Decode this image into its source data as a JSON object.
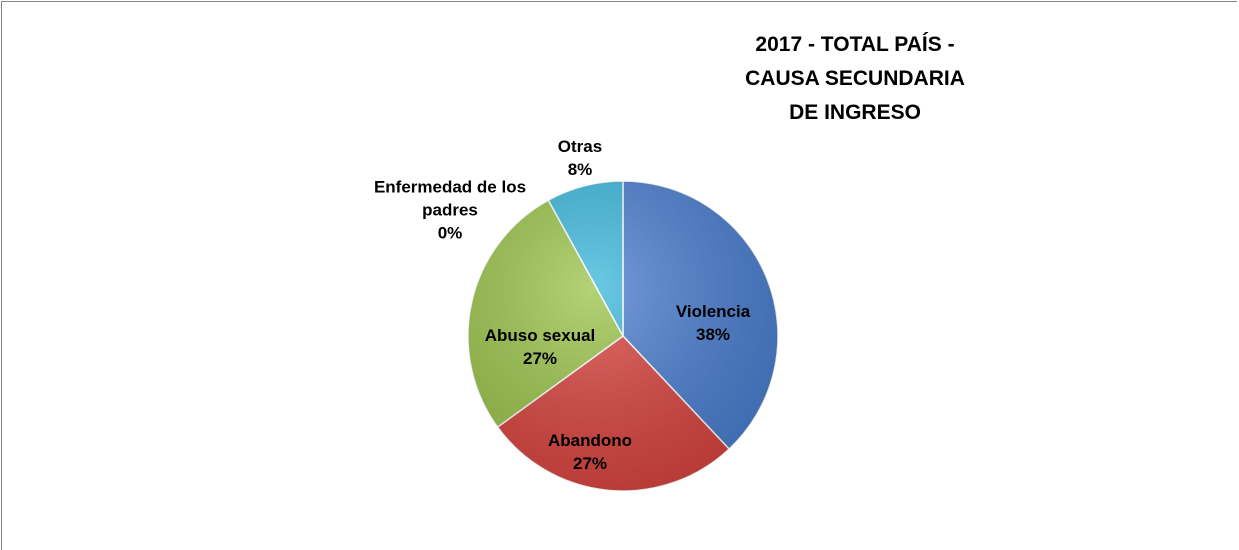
{
  "chart_data": {
    "type": "pie",
    "title": "2017 - TOTAL PAÍS - CAUSA SECUNDARIA DE INGRESO",
    "categories": [
      "Violencia",
      "Abandono",
      "Abuso sexual",
      "Enfermedad de los padres",
      "Otras"
    ],
    "values": [
      38,
      27,
      27,
      0,
      8
    ],
    "value_labels": [
      "38%",
      "27%",
      "27%",
      "0%",
      "8%"
    ],
    "colors": [
      "#4a7ed0",
      "#d9443f",
      "#9bc44a",
      "#7f5fa8",
      "#3bb8dd"
    ]
  }
}
